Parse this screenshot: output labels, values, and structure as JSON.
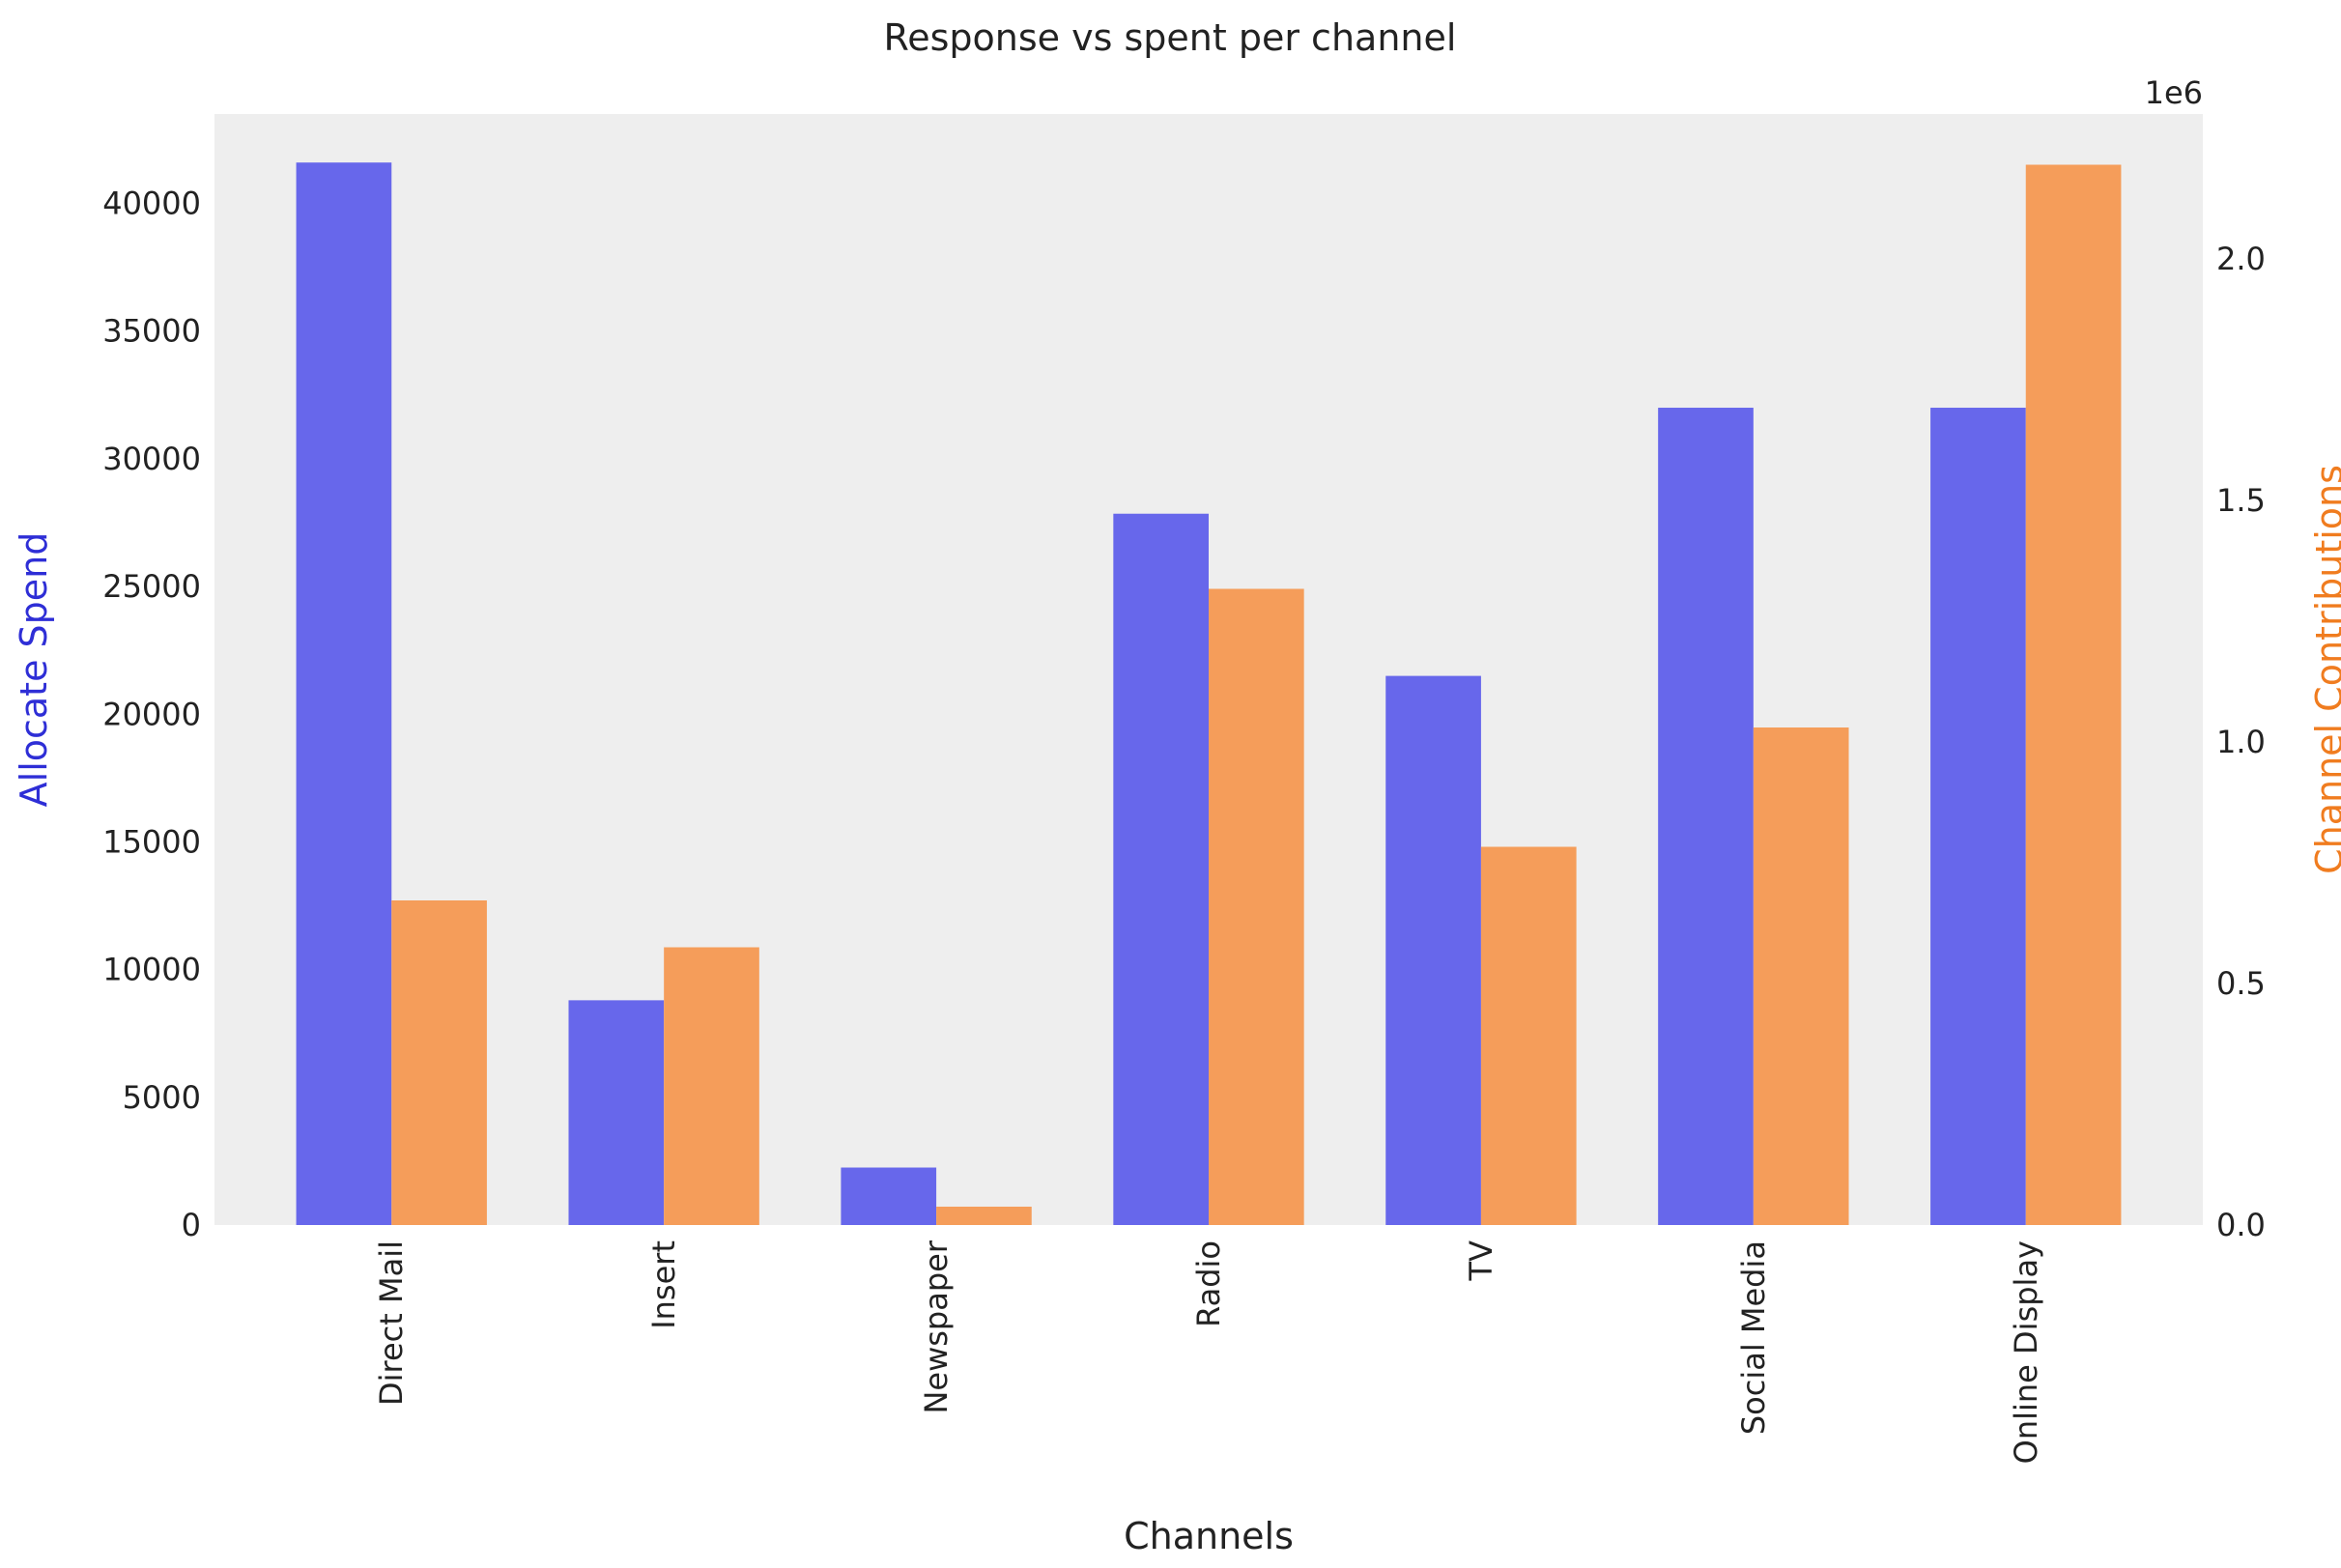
{
  "chart_data": {
    "type": "bar",
    "title": "Response vs spent per channel",
    "xlabel": "Channels",
    "categories": [
      "Direct Mail",
      "Insert",
      "Newspaper",
      "Radio",
      "TV",
      "Social Media",
      "Online Display"
    ],
    "series": [
      {
        "name": "Allocate Spend",
        "axis": "left",
        "color": "#6767eb",
        "values": [
          41600,
          8800,
          2250,
          27850,
          21500,
          32000,
          32000
        ]
      },
      {
        "name": "Channel Contributions",
        "axis": "right",
        "color": "#f59d5a",
        "values": [
          672000,
          575000,
          38000,
          1317000,
          783000,
          1030000,
          2195000
        ]
      }
    ],
    "y_left": {
      "label": "Allocate Spend",
      "label_color": "#2e2ed6",
      "ylim": [
        0,
        43500
      ],
      "ticks": [
        0,
        5000,
        10000,
        15000,
        20000,
        25000,
        30000,
        35000,
        40000
      ],
      "tick_labels": [
        "0",
        "5000",
        "10000",
        "15000",
        "20000",
        "25000",
        "30000",
        "35000",
        "40000"
      ]
    },
    "y_right": {
      "label": "Channel Contributions",
      "label_color": "#f07c1f",
      "ylim": [
        0,
        2300000
      ],
      "offset_label": "1e6",
      "ticks": [
        0,
        500000,
        1000000,
        1500000,
        2000000
      ],
      "tick_labels": [
        "0.0",
        "0.5",
        "1.0",
        "1.5",
        "2.0"
      ]
    },
    "grid": false,
    "background": "#eeeeee"
  }
}
